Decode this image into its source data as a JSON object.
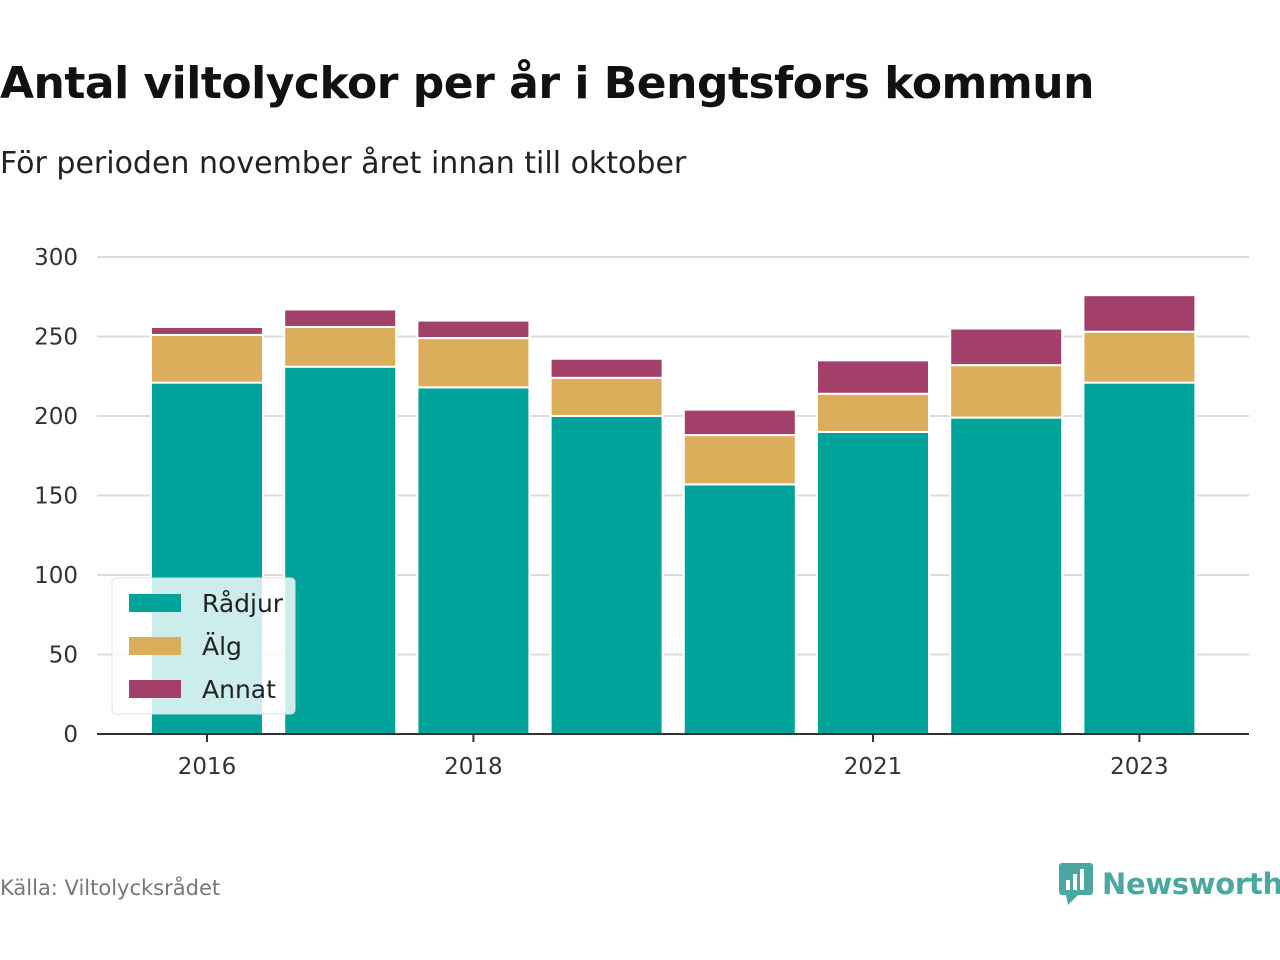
{
  "title": "Antal viltolyckor per år i Bengtsfors kommun",
  "subtitle": "För perioden november året innan till oktober",
  "source": "Källa: Viltolycksrådet",
  "brand": {
    "name": "Newsworthy",
    "icon": "newsworthy-logo-icon",
    "color": "#4aa8a0"
  },
  "chart_data": {
    "type": "bar",
    "stacked": true,
    "categories": [
      "2016",
      "2017",
      "2018",
      "2019",
      "2020",
      "2021",
      "2022",
      "2023"
    ],
    "x_tick_labels": [
      "2016",
      "2018",
      "2021",
      "2023"
    ],
    "series": [
      {
        "name": "Rådjur",
        "color": "#00a39a",
        "values": [
          221,
          231,
          218,
          200,
          157,
          190,
          199,
          221
        ]
      },
      {
        "name": "Älg",
        "color": "#dbae5b",
        "values": [
          30,
          25,
          31,
          24,
          31,
          24,
          33,
          32
        ]
      },
      {
        "name": "Annat",
        "color": "#a34069",
        "values": [
          5,
          11,
          11,
          12,
          16,
          21,
          23,
          23
        ]
      }
    ],
    "ylim": [
      0,
      300
    ],
    "yticks": [
      0,
      50,
      100,
      150,
      200,
      250,
      300
    ],
    "grid": true,
    "legend_position": "bottom-left"
  }
}
